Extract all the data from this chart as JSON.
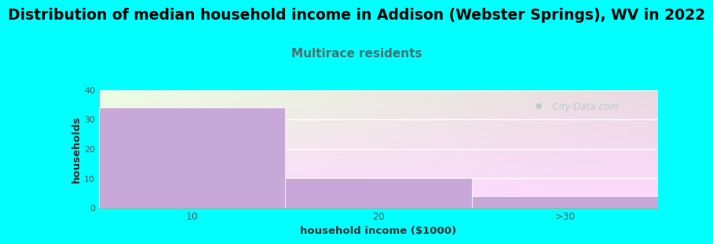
{
  "title": "Distribution of median household income in Addison (Webster Springs), WV in 2022",
  "subtitle": "Multirace residents",
  "categories": [
    "10",
    "20",
    ">30"
  ],
  "values": [
    34,
    10,
    4
  ],
  "bar_color": "#C8A8D8",
  "bar_edgecolor": "#FFFFFF",
  "xlabel": "household income ($1000)",
  "ylabel": "households",
  "ylim": [
    0,
    40
  ],
  "yticks": [
    0,
    10,
    20,
    30,
    40
  ],
  "background_color": "#00FFFF",
  "title_fontsize": 13.5,
  "subtitle_fontsize": 11,
  "subtitle_color": "#4A7070",
  "watermark": "  City-Data.com",
  "watermark_color": "#A8C4C4",
  "grid_color": "#FFFFFF"
}
